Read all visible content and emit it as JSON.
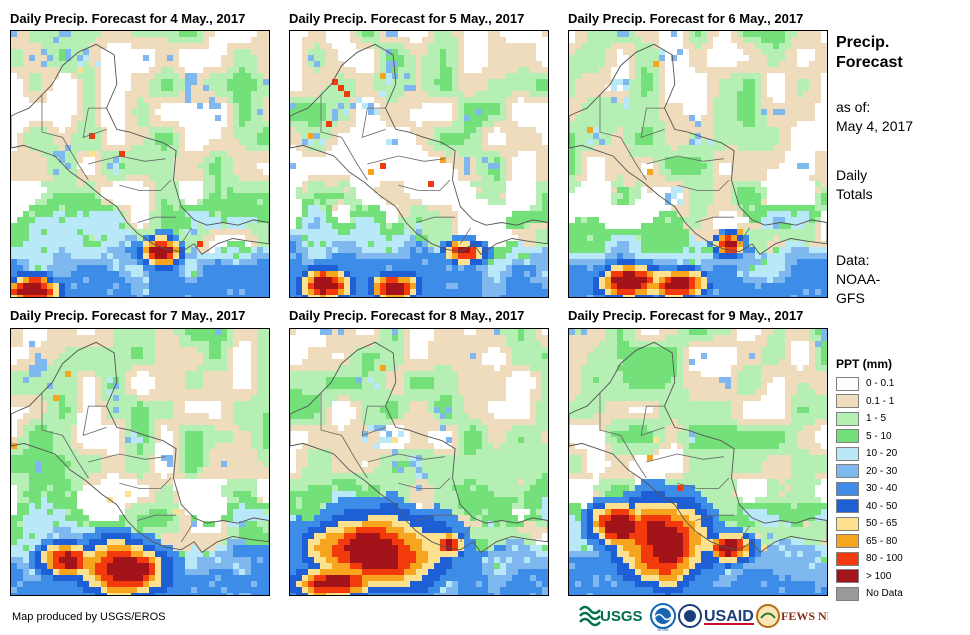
{
  "panels": [
    {
      "title": "Daily Precip. Forecast for 4 May., 2017",
      "day": 0
    },
    {
      "title": "Daily Precip. Forecast for 5 May., 2017",
      "day": 1
    },
    {
      "title": "Daily Precip. Forecast for 6 May., 2017",
      "day": 2
    },
    {
      "title": "Daily Precip. Forecast for 7 May., 2017",
      "day": 3
    },
    {
      "title": "Daily Precip. Forecast for 8 May., 2017",
      "day": 4
    },
    {
      "title": "Daily Precip. Forecast for 9 May., 2017",
      "day": 5
    }
  ],
  "sidebar": {
    "title_line1": "Precip.",
    "title_line2": "Forecast",
    "asof_label": "as of:",
    "asof_date": "May 4, 2017",
    "totals_line1": "Daily",
    "totals_line2": "Totals",
    "data_label": "Data:",
    "data_line1": "NOAA-",
    "data_line2": "GFS"
  },
  "legend": {
    "title": "PPT (mm)",
    "classes": [
      {
        "label": "0 - 0.1",
        "color": "#ffffff"
      },
      {
        "label": "0.1 - 1",
        "color": "#eedcbc"
      },
      {
        "label": "1 - 5",
        "color": "#b5efb3"
      },
      {
        "label": "5 - 10",
        "color": "#74e07a"
      },
      {
        "label": "10 - 20",
        "color": "#b9e9f8"
      },
      {
        "label": "20 - 30",
        "color": "#7eb8ee"
      },
      {
        "label": "30 - 40",
        "color": "#3d8ce8"
      },
      {
        "label": "40 - 50",
        "color": "#1e5fd6"
      },
      {
        "label": "50 - 65",
        "color": "#fce18f"
      },
      {
        "label": "65 - 80",
        "color": "#f7a41e"
      },
      {
        "label": "80 - 100",
        "color": "#f23a0c"
      },
      {
        "label": "> 100",
        "color": "#a3141a"
      },
      {
        "label": "No Data",
        "color": "#999999"
      }
    ]
  },
  "credit": "Map produced by USGS/EROS",
  "logos": [
    {
      "name": "USGS",
      "text": "USGS",
      "color": "#00704a"
    },
    {
      "name": "NOAA",
      "text": "NOAA",
      "color": "#1565b3"
    },
    {
      "name": "USAID",
      "text": "USAID",
      "color": "#c8102e"
    },
    {
      "name": "FEWS NET",
      "text": "FEWS NET",
      "color": "#8a2b1b"
    }
  ]
}
